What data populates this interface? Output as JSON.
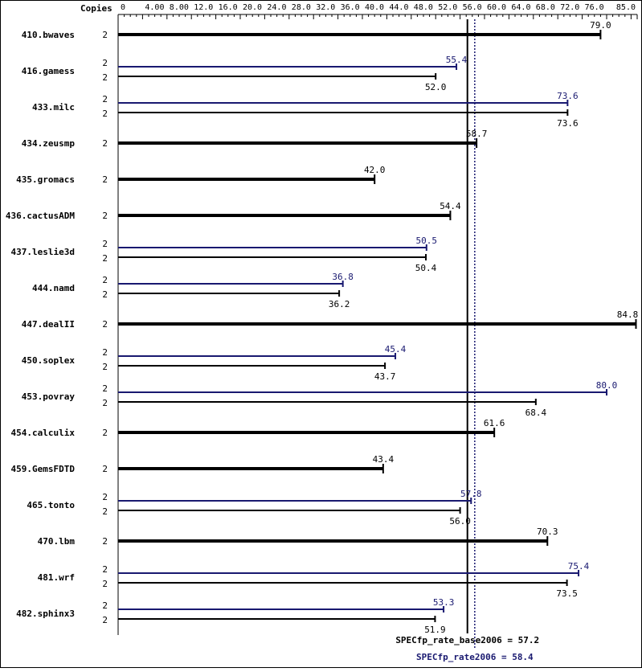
{
  "chart_data": {
    "type": "bar",
    "header_label": "Copies",
    "x_ticks": [
      "0",
      "4.00",
      "8.00",
      "12.0",
      "16.0",
      "20.0",
      "24.0",
      "28.0",
      "32.0",
      "36.0",
      "40.0",
      "44.0",
      "48.0",
      "52.0",
      "56.0",
      "60.0",
      "64.0",
      "68.0",
      "72.0",
      "76.0",
      "85.0"
    ],
    "x_tick_values": [
      0,
      4,
      8,
      12,
      16,
      20,
      24,
      28,
      32,
      36,
      40,
      44,
      48,
      52,
      56,
      60,
      64,
      68,
      72,
      76,
      85
    ],
    "xlim": [
      0,
      85
    ],
    "reference_lines": [
      {
        "name": "base",
        "label": "SPECfp_rate_base2006 = 57.2",
        "value": 57.2,
        "color": "#000000",
        "style": "solid"
      },
      {
        "name": "peak",
        "label": "SPECfp_rate2006 = 58.4",
        "value": 58.4,
        "color": "#191970",
        "style": "dotted"
      }
    ],
    "benchmarks": [
      {
        "name": "410.bwaves",
        "base": {
          "copies": "2",
          "value": 79.0,
          "label": "79.0"
        },
        "peak": null
      },
      {
        "name": "416.gamess",
        "base": {
          "copies": "2",
          "value": 52.0,
          "label": "52.0"
        },
        "peak": {
          "copies": "2",
          "value": 55.4,
          "label": "55.4"
        }
      },
      {
        "name": "433.milc",
        "base": {
          "copies": "2",
          "value": 73.6,
          "label": "73.6"
        },
        "peak": {
          "copies": "2",
          "value": 73.6,
          "label": "73.6"
        }
      },
      {
        "name": "434.zeusmp",
        "base": {
          "copies": "2",
          "value": 58.7,
          "label": "58.7"
        },
        "peak": null
      },
      {
        "name": "435.gromacs",
        "base": {
          "copies": "2",
          "value": 42.0,
          "label": "42.0"
        },
        "peak": null
      },
      {
        "name": "436.cactusADM",
        "base": {
          "copies": "2",
          "value": 54.4,
          "label": "54.4"
        },
        "peak": null
      },
      {
        "name": "437.leslie3d",
        "base": {
          "copies": "2",
          "value": 50.4,
          "label": "50.4"
        },
        "peak": {
          "copies": "2",
          "value": 50.5,
          "label": "50.5"
        }
      },
      {
        "name": "444.namd",
        "base": {
          "copies": "2",
          "value": 36.2,
          "label": "36.2"
        },
        "peak": {
          "copies": "2",
          "value": 36.8,
          "label": "36.8"
        }
      },
      {
        "name": "447.dealII",
        "base": {
          "copies": "2",
          "value": 84.8,
          "label": "84.8"
        },
        "peak": null
      },
      {
        "name": "450.soplex",
        "base": {
          "copies": "2",
          "value": 43.7,
          "label": "43.7"
        },
        "peak": {
          "copies": "2",
          "value": 45.4,
          "label": "45.4"
        }
      },
      {
        "name": "453.povray",
        "base": {
          "copies": "2",
          "value": 68.4,
          "label": "68.4"
        },
        "peak": {
          "copies": "2",
          "value": 80.0,
          "label": "80.0"
        }
      },
      {
        "name": "454.calculix",
        "base": {
          "copies": "2",
          "value": 61.6,
          "label": "61.6"
        },
        "peak": null
      },
      {
        "name": "459.GemsFDTD",
        "base": {
          "copies": "2",
          "value": 43.4,
          "label": "43.4"
        },
        "peak": null
      },
      {
        "name": "465.tonto",
        "base": {
          "copies": "2",
          "value": 56.0,
          "label": "56.0"
        },
        "peak": {
          "copies": "2",
          "value": 57.8,
          "label": "57.8"
        }
      },
      {
        "name": "470.lbm",
        "base": {
          "copies": "2",
          "value": 70.3,
          "label": "70.3"
        },
        "peak": null
      },
      {
        "name": "481.wrf",
        "base": {
          "copies": "2",
          "value": 73.5,
          "label": "73.5"
        },
        "peak": {
          "copies": "2",
          "value": 75.4,
          "label": "75.4"
        }
      },
      {
        "name": "482.sphinx3",
        "base": {
          "copies": "2",
          "value": 51.9,
          "label": "51.9"
        },
        "peak": {
          "copies": "2",
          "value": 53.3,
          "label": "53.3"
        }
      }
    ],
    "colors": {
      "base": "#000000",
      "peak": "#191970"
    }
  }
}
